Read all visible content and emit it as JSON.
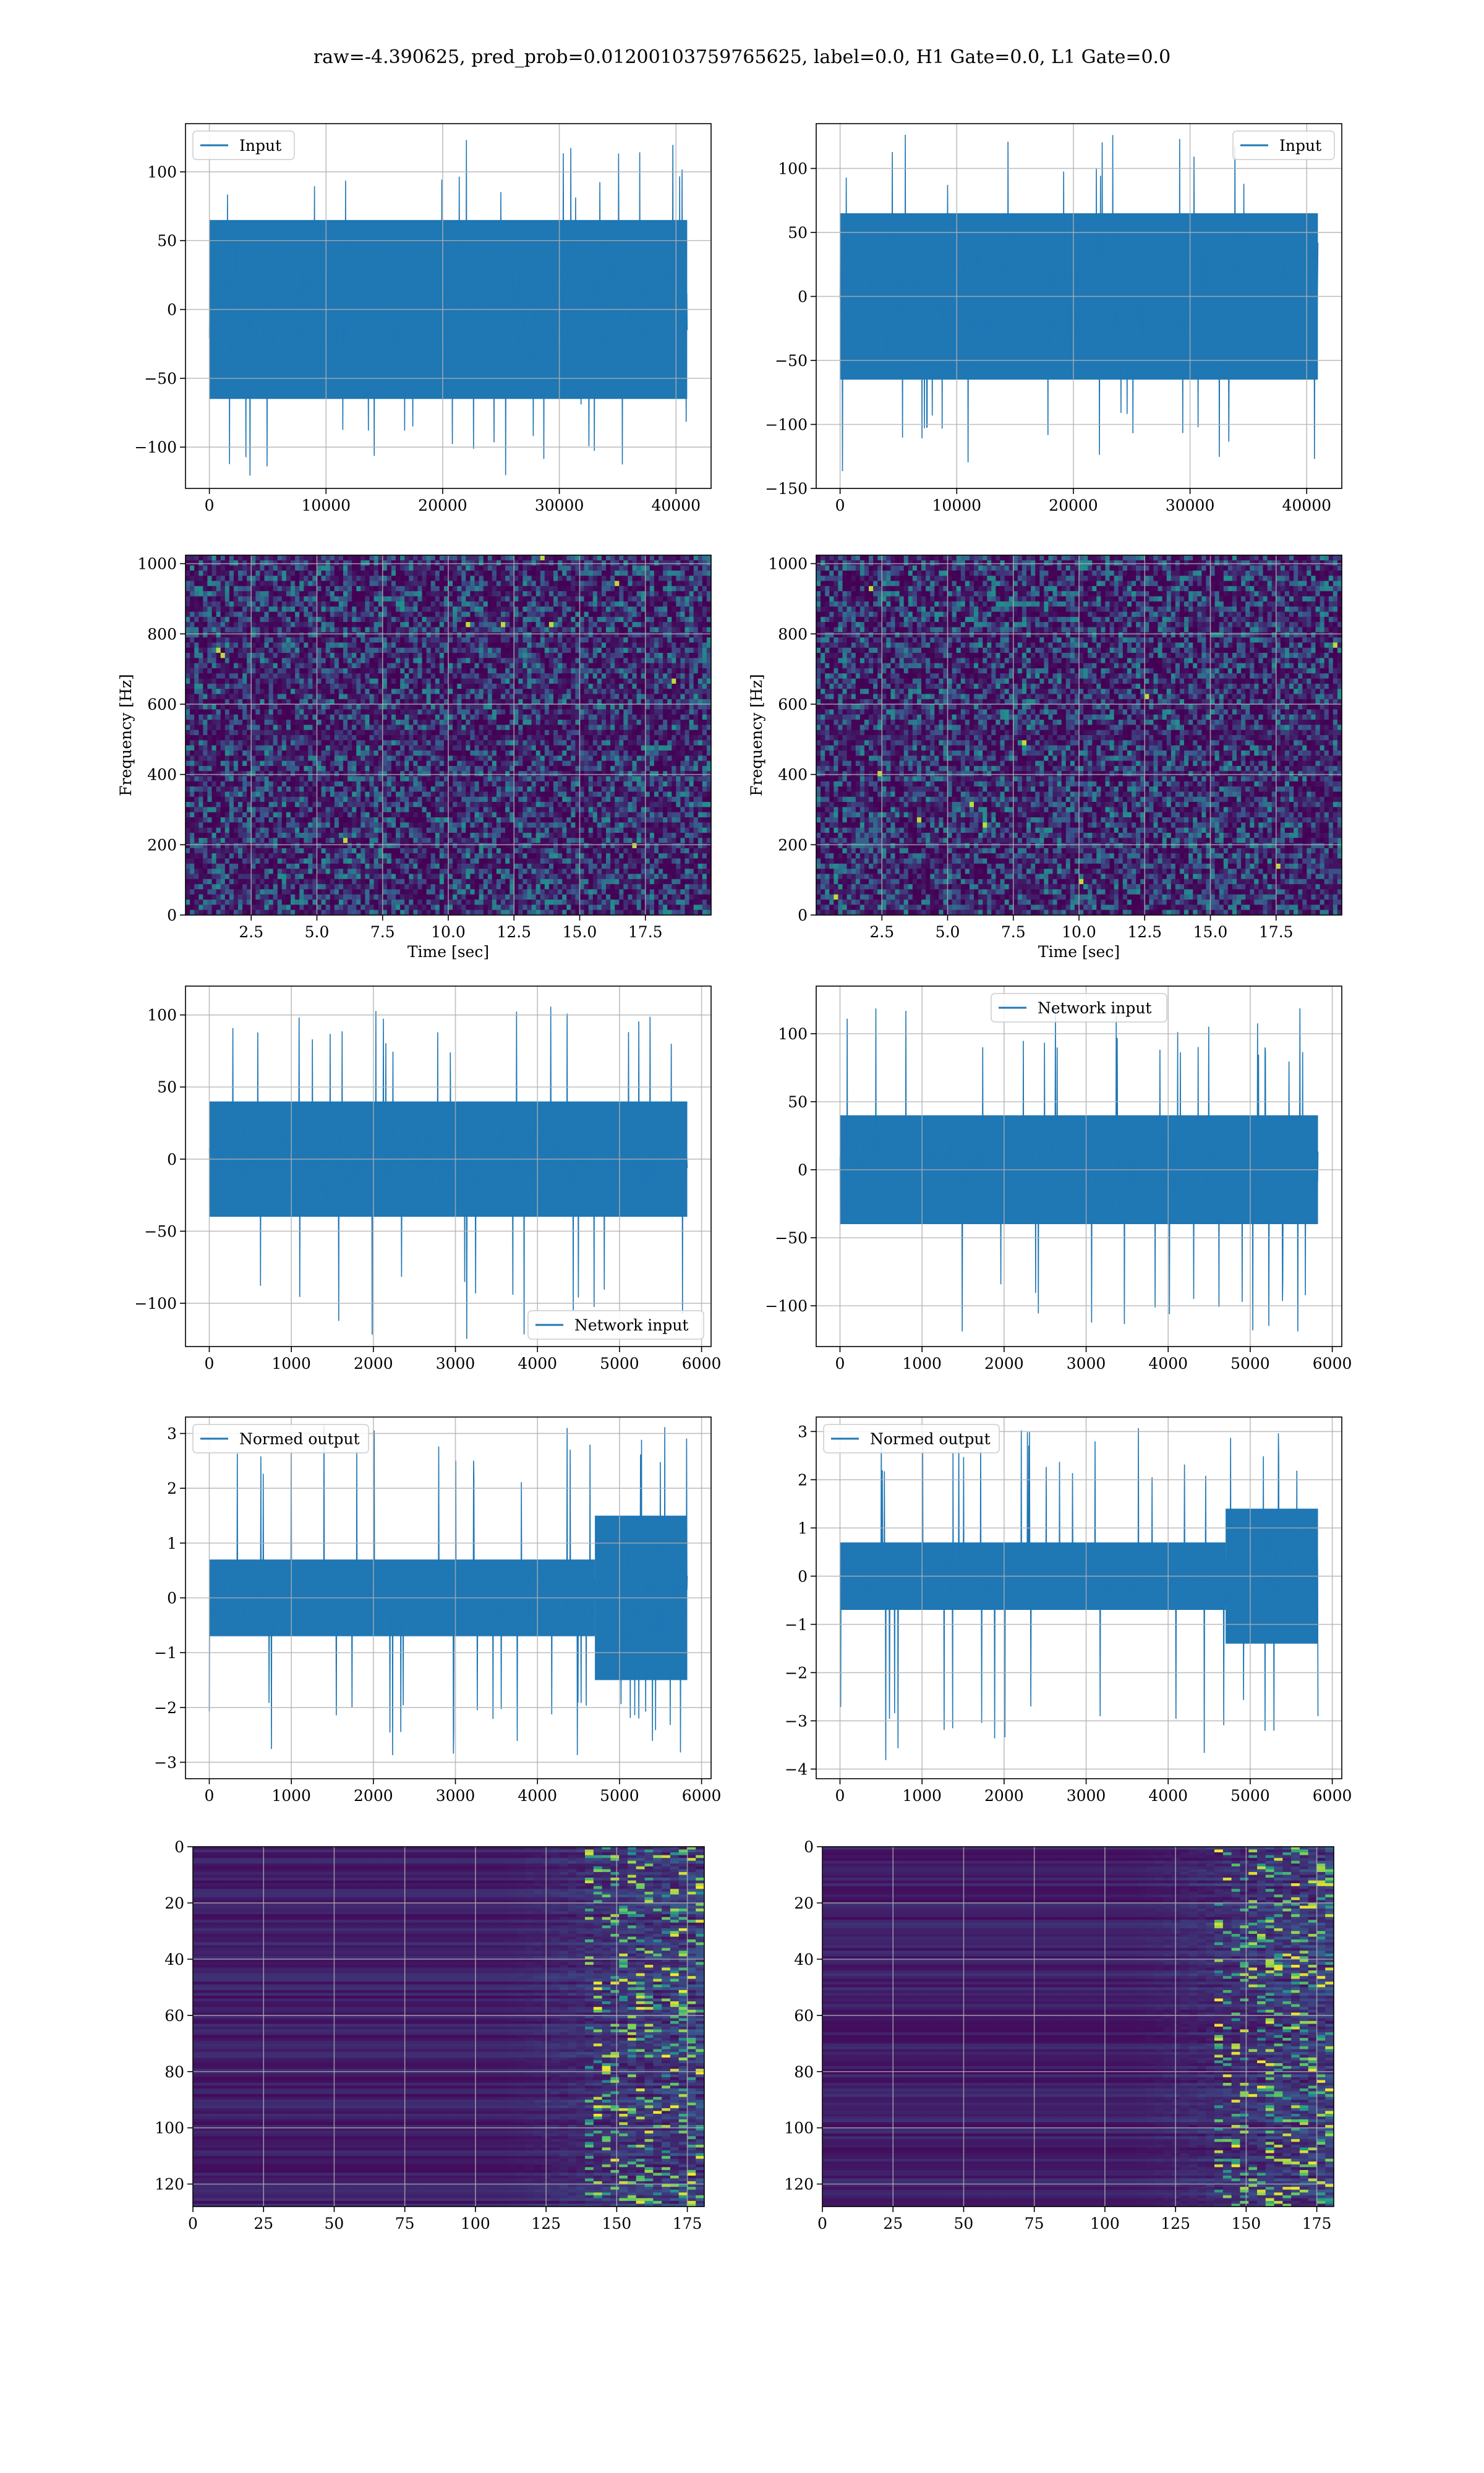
{
  "figure": {
    "suptitle": "raw=-4.390625, pred_prob=0.01200103759765625, label=0.0, H1 Gate=0.0, L1 Gate=0.0"
  },
  "colors": {
    "line": "#1f77b4",
    "grid": "#b0b0b0",
    "viridis_low": "#440154",
    "viridis_mid": "#21918c",
    "viridis_high": "#fde725"
  },
  "chart_data": [
    {
      "id": "input-h1",
      "type": "line",
      "title": "",
      "xlabel": "",
      "ylabel": "",
      "xlim": [
        -2048,
        43008
      ],
      "ylim": [
        -130,
        135
      ],
      "xticks": [
        0,
        10000,
        20000,
        30000,
        40000
      ],
      "xtick_labels": [
        "0",
        "10000",
        "20000",
        "30000",
        "40000"
      ],
      "yticks": [
        -100,
        -50,
        0,
        50,
        100
      ],
      "ytick_labels": [
        "−100",
        "−50",
        "0",
        "50",
        "100"
      ],
      "series": [
        {
          "name": "Input",
          "x_range": [
            0,
            40960
          ],
          "dense_amplitude": 65,
          "spike_min": -125,
          "spike_max": 125
        }
      ],
      "legend": "upper left",
      "grid": true
    },
    {
      "id": "input-l1",
      "type": "line",
      "title": "",
      "xlabel": "",
      "ylabel": "",
      "xlim": [
        -2048,
        43008
      ],
      "ylim": [
        -150,
        135
      ],
      "xticks": [
        0,
        10000,
        20000,
        30000,
        40000
      ],
      "xtick_labels": [
        "0",
        "10000",
        "20000",
        "30000",
        "40000"
      ],
      "yticks": [
        -150,
        -100,
        -50,
        0,
        50,
        100
      ],
      "ytick_labels": [
        "−150",
        "−100",
        "−50",
        "0",
        "50",
        "100"
      ],
      "series": [
        {
          "name": "Input",
          "x_range": [
            0,
            40960
          ],
          "dense_amplitude": 65,
          "spike_min": -138,
          "spike_max": 128
        }
      ],
      "legend": "upper right",
      "grid": true
    },
    {
      "id": "spectrogram-h1",
      "type": "heatmap",
      "title": "",
      "xlabel": "Time [sec]",
      "ylabel": "Frequency [Hz]",
      "xlim": [
        0,
        20
      ],
      "ylim": [
        0,
        1024
      ],
      "xticks": [
        2.5,
        5.0,
        7.5,
        10.0,
        12.5,
        15.0,
        17.5
      ],
      "xtick_labels": [
        "2.5",
        "5.0",
        "7.5",
        "10.0",
        "12.5",
        "15.0",
        "17.5"
      ],
      "yticks": [
        0,
        200,
        400,
        600,
        800,
        1000
      ],
      "ytick_labels": [
        "0",
        "200",
        "400",
        "600",
        "800",
        "1000"
      ],
      "grid": true,
      "colormap": "viridis"
    },
    {
      "id": "spectrogram-l1",
      "type": "heatmap",
      "title": "",
      "xlabel": "Time [sec]",
      "ylabel": "Frequency [Hz]",
      "xlim": [
        0,
        20
      ],
      "ylim": [
        0,
        1024
      ],
      "xticks": [
        2.5,
        5.0,
        7.5,
        10.0,
        12.5,
        15.0,
        17.5
      ],
      "xtick_labels": [
        "2.5",
        "5.0",
        "7.5",
        "10.0",
        "12.5",
        "15.0",
        "17.5"
      ],
      "yticks": [
        0,
        200,
        400,
        600,
        800,
        1000
      ],
      "ytick_labels": [
        "0",
        "200",
        "400",
        "600",
        "800",
        "1000"
      ],
      "grid": true,
      "colormap": "viridis"
    },
    {
      "id": "network-input-h1",
      "type": "line",
      "title": "",
      "xlabel": "",
      "ylabel": "",
      "xlim": [
        -290,
        6116
      ],
      "ylim": [
        -130,
        120
      ],
      "xticks": [
        0,
        1000,
        2000,
        3000,
        4000,
        5000,
        6000
      ],
      "xtick_labels": [
        "0",
        "1000",
        "2000",
        "3000",
        "4000",
        "5000",
        "6000"
      ],
      "yticks": [
        -100,
        -50,
        0,
        50,
        100
      ],
      "ytick_labels": [
        "−100",
        "−50",
        "0",
        "50",
        "100"
      ],
      "series": [
        {
          "name": "Network input",
          "x_range": [
            0,
            5826
          ],
          "dense_amplitude": 40,
          "spike_min": -125,
          "spike_max": 108
        }
      ],
      "legend": "lower right",
      "grid": true
    },
    {
      "id": "network-input-l1",
      "type": "line",
      "title": "",
      "xlabel": "",
      "ylabel": "",
      "xlim": [
        -290,
        6116
      ],
      "ylim": [
        -130,
        135
      ],
      "xticks": [
        0,
        1000,
        2000,
        3000,
        4000,
        5000,
        6000
      ],
      "xtick_labels": [
        "0",
        "1000",
        "2000",
        "3000",
        "4000",
        "5000",
        "6000"
      ],
      "yticks": [
        -100,
        -50,
        0,
        50,
        100
      ],
      "ytick_labels": [
        "−100",
        "−50",
        "0",
        "50",
        "100"
      ],
      "series": [
        {
          "name": "Network input",
          "x_range": [
            0,
            5826
          ],
          "dense_amplitude": 40,
          "spike_min": -120,
          "spike_max": 122
        }
      ],
      "legend": "upper center",
      "grid": true
    },
    {
      "id": "normed-output-h1",
      "type": "line",
      "title": "",
      "xlabel": "",
      "ylabel": "",
      "xlim": [
        -290,
        6116
      ],
      "ylim": [
        -3.3,
        3.3
      ],
      "xticks": [
        0,
        1000,
        2000,
        3000,
        4000,
        5000,
        6000
      ],
      "xtick_labels": [
        "0",
        "1000",
        "2000",
        "3000",
        "4000",
        "5000",
        "6000"
      ],
      "yticks": [
        -3,
        -2,
        -1,
        0,
        1,
        2,
        3
      ],
      "ytick_labels": [
        "−3",
        "−2",
        "−1",
        "0",
        "1",
        "2",
        "3"
      ],
      "series": [
        {
          "name": "Normed output",
          "x_range": [
            0,
            5826
          ],
          "dense_amplitude": 0.7,
          "loud_from": 4700,
          "loud_amplitude": 1.5,
          "spike_min": -2.9,
          "spike_max": 3.15
        }
      ],
      "legend": "upper left",
      "grid": true
    },
    {
      "id": "normed-output-l1",
      "type": "line",
      "title": "",
      "xlabel": "",
      "ylabel": "",
      "xlim": [
        -290,
        6116
      ],
      "ylim": [
        -4.2,
        3.3
      ],
      "xticks": [
        0,
        1000,
        2000,
        3000,
        4000,
        5000,
        6000
      ],
      "xtick_labels": [
        "0",
        "1000",
        "2000",
        "3000",
        "4000",
        "5000",
        "6000"
      ],
      "yticks": [
        -4,
        -3,
        -2,
        -1,
        0,
        1,
        2,
        3
      ],
      "ytick_labels": [
        "−4",
        "−3",
        "−2",
        "−1",
        "0",
        "1",
        "2",
        "3"
      ],
      "series": [
        {
          "name": "Normed output",
          "x_range": [
            0,
            5826
          ],
          "dense_amplitude": 0.7,
          "loud_from": 4700,
          "loud_amplitude": 1.4,
          "spike_min": -3.9,
          "spike_max": 3.1
        }
      ],
      "legend": "upper left",
      "grid": true
    },
    {
      "id": "feature-map-h1",
      "type": "heatmap",
      "title": "",
      "xlabel": "",
      "ylabel": "",
      "xlim": [
        0,
        181
      ],
      "ylim": [
        128,
        0
      ],
      "xticks": [
        0,
        25,
        50,
        75,
        100,
        125,
        150,
        175
      ],
      "xtick_labels": [
        "0",
        "25",
        "50",
        "75",
        "100",
        "125",
        "150",
        "175"
      ],
      "yticks": [
        0,
        20,
        40,
        60,
        80,
        100,
        120
      ],
      "ytick_labels": [
        "0",
        "20",
        "40",
        "60",
        "80",
        "100",
        "120"
      ],
      "grid": true,
      "colormap": "viridis"
    },
    {
      "id": "feature-map-l1",
      "type": "heatmap",
      "title": "",
      "xlabel": "",
      "ylabel": "",
      "xlim": [
        0,
        181
      ],
      "ylim": [
        128,
        0
      ],
      "xticks": [
        0,
        25,
        50,
        75,
        100,
        125,
        150,
        175
      ],
      "xtick_labels": [
        "0",
        "25",
        "50",
        "75",
        "100",
        "125",
        "150",
        "175"
      ],
      "yticks": [
        0,
        20,
        40,
        60,
        80,
        100,
        120
      ],
      "ytick_labels": [
        "0",
        "20",
        "40",
        "60",
        "80",
        "100",
        "120"
      ],
      "grid": true,
      "colormap": "viridis"
    }
  ]
}
